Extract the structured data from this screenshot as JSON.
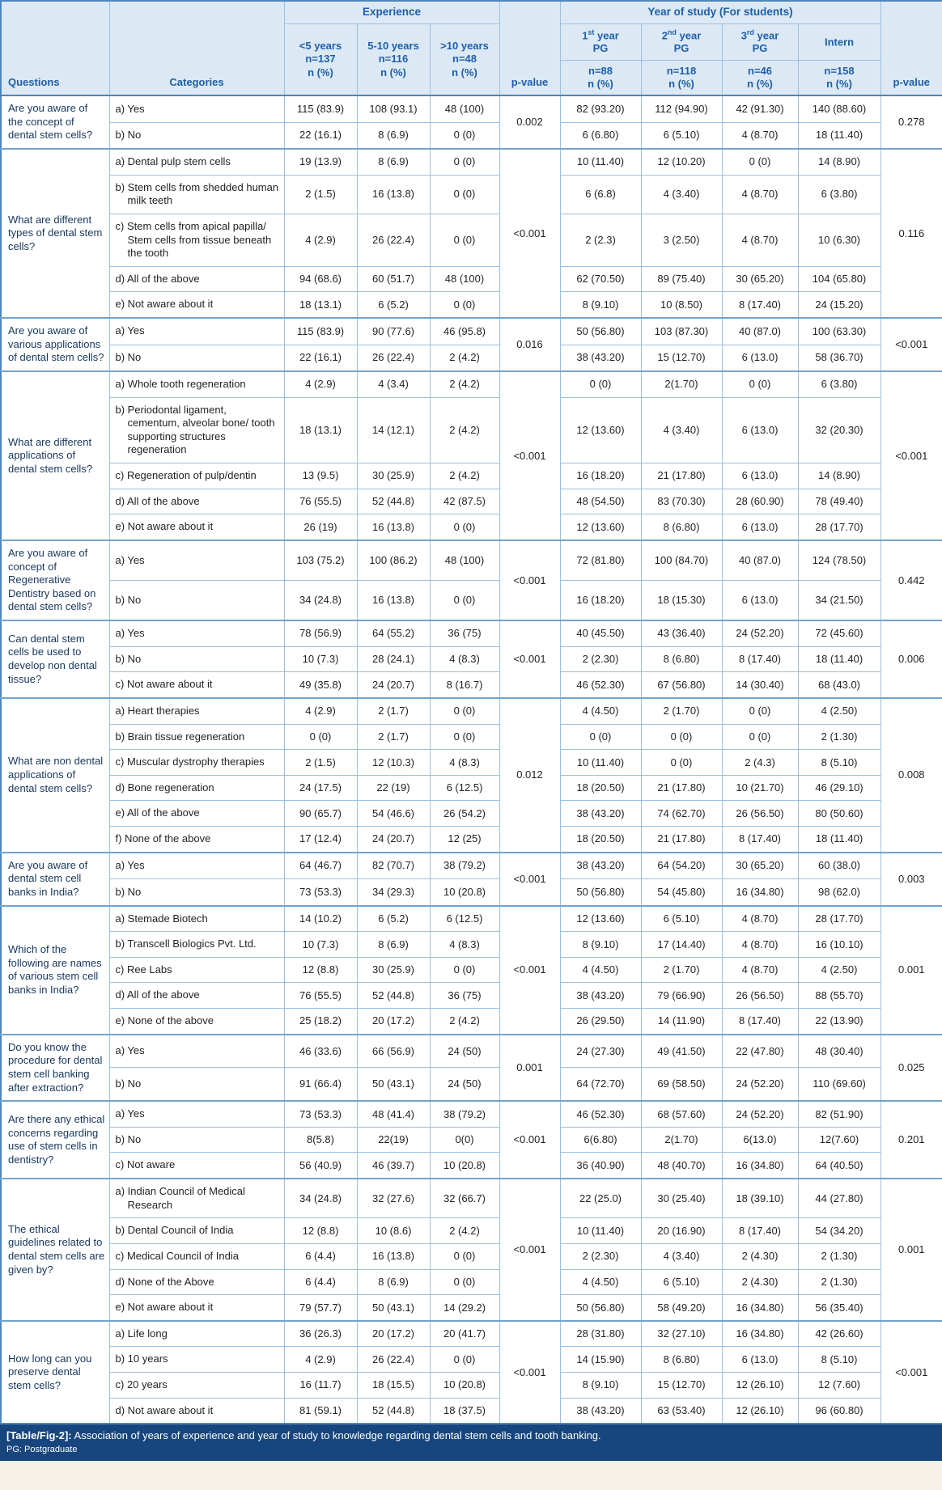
{
  "table": {
    "header": {
      "questions_label": "Questions",
      "categories_label": "Categories",
      "experience_label": "Experience",
      "year_label": "Year of study (For students)",
      "pvalue_label": "p-value",
      "experience_cols": [
        {
          "line1": "<5 years",
          "line2": "n=137",
          "line3": "n (%)"
        },
        {
          "line1": "5-10 years",
          "line2": "n=116",
          "line3": "n (%)"
        },
        {
          "line1": ">10 years",
          "line2": "n=48",
          "line3": "n (%)"
        }
      ],
      "year_cols": [
        {
          "pre": "1",
          "sup": "st",
          "post": " year",
          "line2": "PG",
          "n": "n=88",
          "npct": "n (%)"
        },
        {
          "pre": "2",
          "sup": "nd",
          "post": " year",
          "line2": "PG",
          "n": "n=118",
          "npct": "n (%)"
        },
        {
          "pre": "3",
          "sup": "rd",
          "post": " year",
          "line2": "PG",
          "n": "n=46",
          "npct": "n (%)"
        },
        {
          "pre": "Intern",
          "sup": "",
          "post": "",
          "line2": "",
          "n": "n=158",
          "npct": "n (%)"
        }
      ]
    },
    "questions": [
      {
        "question": "Are you aware of the concept of dental stem cells?",
        "exp_p": "0.002",
        "year_p": "0.278",
        "rows": [
          {
            "category": "a) Yes",
            "exp": [
              "115 (83.9)",
              "108 (93.1)",
              "48 (100)"
            ],
            "year": [
              "82 (93.20)",
              "112 (94.90)",
              "42 (91.30)",
              "140 (88.60)"
            ]
          },
          {
            "category": "b) No",
            "exp": [
              "22 (16.1)",
              "8 (6.9)",
              "0 (0)"
            ],
            "year": [
              "6 (6.80)",
              "6 (5.10)",
              "4 (8.70)",
              "18 (11.40)"
            ]
          }
        ]
      },
      {
        "question": "What are different types of dental stem cells?",
        "exp_p": "<0.001",
        "year_p": "0.116",
        "rows": [
          {
            "category": "a) Dental pulp stem cells",
            "exp": [
              "19 (13.9)",
              "8 (6.9)",
              "0 (0)"
            ],
            "year": [
              "10 (11.40)",
              "12 (10.20)",
              "0 (0)",
              "14 (8.90)"
            ]
          },
          {
            "category": "b) Stem cells from shedded human milk teeth",
            "exp": [
              "2 (1.5)",
              "16 (13.8)",
              "0 (0)"
            ],
            "year": [
              "6 (6.8)",
              "4 (3.40)",
              "4 (8.70)",
              "6 (3.80)"
            ]
          },
          {
            "category": "c) Stem cells from apical papilla/ Stem cells from tissue beneath the tooth",
            "exp": [
              "4 (2.9)",
              "26 (22.4)",
              "0 (0)"
            ],
            "year": [
              "2 (2.3)",
              "3 (2.50)",
              "4 (8.70)",
              "10 (6.30)"
            ]
          },
          {
            "category": "d) All of the above",
            "exp": [
              "94 (68.6)",
              "60 (51.7)",
              "48 (100)"
            ],
            "year": [
              "62 (70.50)",
              "89 (75.40)",
              "30 (65.20)",
              "104 (65.80)"
            ]
          },
          {
            "category": "e) Not aware about it",
            "exp": [
              "18 (13.1)",
              "6 (5.2)",
              "0 (0)"
            ],
            "year": [
              "8 (9.10)",
              "10 (8.50)",
              "8 (17.40)",
              "24 (15.20)"
            ]
          }
        ]
      },
      {
        "question": "Are you aware of various applications of dental stem cells?",
        "exp_p": "0.016",
        "year_p": "<0.001",
        "rows": [
          {
            "category": "a) Yes",
            "exp": [
              "115 (83.9)",
              "90 (77.6)",
              "46 (95.8)"
            ],
            "year": [
              "50 (56.80)",
              "103 (87.30)",
              "40 (87.0)",
              "100 (63.30)"
            ]
          },
          {
            "category": "b) No",
            "exp": [
              "22 (16.1)",
              "26 (22.4)",
              "2 (4.2)"
            ],
            "year": [
              "38 (43.20)",
              "15 (12.70)",
              "6 (13.0)",
              "58 (36.70)"
            ]
          }
        ]
      },
      {
        "question": "What are different applications of dental stem cells?",
        "exp_p": "<0.001",
        "year_p": "<0.001",
        "rows": [
          {
            "category": "a) Whole tooth regeneration",
            "exp": [
              "4 (2.9)",
              "4 (3.4)",
              "2 (4.2)"
            ],
            "year": [
              "0 (0)",
              "2(1.70)",
              "0 (0)",
              "6 (3.80)"
            ]
          },
          {
            "category": "b) Periodontal ligament, cementum, alveolar bone/ tooth supporting structures regeneration",
            "exp": [
              "18 (13.1)",
              "14 (12.1)",
              "2 (4.2)"
            ],
            "year": [
              "12 (13.60)",
              "4 (3.40)",
              "6 (13.0)",
              "32 (20.30)"
            ]
          },
          {
            "category": "c) Regeneration of pulp/dentin",
            "exp": [
              "13 (9.5)",
              "30 (25.9)",
              "2 (4.2)"
            ],
            "year": [
              "16 (18.20)",
              "21 (17.80)",
              "6 (13.0)",
              "14 (8.90)"
            ]
          },
          {
            "category": "d) All of the above",
            "exp": [
              "76 (55.5)",
              "52 (44.8)",
              "42 (87.5)"
            ],
            "year": [
              "48 (54.50)",
              "83 (70.30)",
              "28 (60.90)",
              "78 (49.40)"
            ]
          },
          {
            "category": "e) Not aware about it",
            "exp": [
              "26 (19)",
              "16 (13.8)",
              "0 (0)"
            ],
            "year": [
              "12 (13.60)",
              "8 (6.80)",
              "6 (13.0)",
              "28 (17.70)"
            ]
          }
        ]
      },
      {
        "question": "Are you aware of concept of Regenerative Dentistry based on dental stem cells?",
        "exp_p": "<0.001",
        "year_p": "0.442",
        "rows": [
          {
            "category": "a) Yes",
            "exp": [
              "103 (75.2)",
              "100 (86.2)",
              "48 (100)"
            ],
            "year": [
              "72 (81.80)",
              "100 (84.70)",
              "40 (87.0)",
              "124 (78.50)"
            ]
          },
          {
            "category": "b) No",
            "exp": [
              "34 (24.8)",
              "16 (13.8)",
              "0 (0)"
            ],
            "year": [
              "16 (18.20)",
              "18 (15.30)",
              "6 (13.0)",
              "34 (21.50)"
            ]
          }
        ]
      },
      {
        "question": "Can dental stem cells be used to develop non dental tissue?",
        "exp_p": "<0.001",
        "year_p": "0.006",
        "rows": [
          {
            "category": "a) Yes",
            "exp": [
              "78 (56.9)",
              "64 (55.2)",
              "36 (75)"
            ],
            "year": [
              "40 (45.50)",
              "43 (36.40)",
              "24 (52.20)",
              "72 (45.60)"
            ]
          },
          {
            "category": "b) No",
            "exp": [
              "10 (7.3)",
              "28 (24.1)",
              "4 (8.3)"
            ],
            "year": [
              "2 (2.30)",
              "8 (6.80)",
              "8 (17.40)",
              "18 (11.40)"
            ]
          },
          {
            "category": "c) Not aware about it",
            "exp": [
              "49 (35.8)",
              "24 (20.7)",
              "8 (16.7)"
            ],
            "year": [
              "46 (52.30)",
              "67 (56.80)",
              "14 (30.40)",
              "68 (43.0)"
            ]
          }
        ]
      },
      {
        "question": "What are non dental applications of dental stem cells?",
        "exp_p": "0.012",
        "year_p": "0.008",
        "rows": [
          {
            "category": "a) Heart therapies",
            "exp": [
              "4 (2.9)",
              "2 (1.7)",
              "0 (0)"
            ],
            "year": [
              "4 (4.50)",
              "2 (1.70)",
              "0 (0)",
              "4 (2.50)"
            ]
          },
          {
            "category": "b) Brain tissue regeneration",
            "exp": [
              "0 (0)",
              "2 (1.7)",
              "0 (0)"
            ],
            "year": [
              "0 (0)",
              "0 (0)",
              "0 (0)",
              "2 (1.30)"
            ]
          },
          {
            "category": "c) Muscular dystrophy therapies",
            "exp": [
              "2 (1.5)",
              "12 (10.3)",
              "4 (8.3)"
            ],
            "year": [
              "10 (11.40)",
              "0 (0)",
              "2 (4.3)",
              "8 (5.10)"
            ]
          },
          {
            "category": "d) Bone regeneration",
            "exp": [
              "24 (17.5)",
              "22 (19)",
              "6 (12.5)"
            ],
            "year": [
              "18 (20.50)",
              "21 (17.80)",
              "10 (21.70)",
              "46 (29.10)"
            ]
          },
          {
            "category": "e) All of the above",
            "exp": [
              "90 (65.7)",
              "54 (46.6)",
              "26 (54.2)"
            ],
            "year": [
              "38 (43.20)",
              "74 (62.70)",
              "26 (56.50)",
              "80 (50.60)"
            ]
          },
          {
            "category": "f) None of the above",
            "exp": [
              "17 (12.4)",
              "24 (20.7)",
              "12 (25)"
            ],
            "year": [
              "18 (20.50)",
              "21 (17.80)",
              "8 (17.40)",
              "18 (11.40)"
            ]
          }
        ]
      },
      {
        "question": "Are you aware of dental stem cell banks in India?",
        "exp_p": "<0.001",
        "year_p": "0.003",
        "rows": [
          {
            "category": "a) Yes",
            "exp": [
              "64 (46.7)",
              "82 (70.7)",
              "38 (79.2)"
            ],
            "year": [
              "38 (43.20)",
              "64 (54.20)",
              "30 (65.20)",
              "60 (38.0)"
            ]
          },
          {
            "category": "b) No",
            "exp": [
              "73 (53.3)",
              "34 (29.3)",
              "10 (20.8)"
            ],
            "year": [
              "50 (56.80)",
              "54 (45.80)",
              "16 (34.80)",
              "98 (62.0)"
            ]
          }
        ]
      },
      {
        "question": "Which of the following are names of various stem cell banks in India?",
        "exp_p": "<0.001",
        "year_p": "0.001",
        "rows": [
          {
            "category": "a) Stemade Biotech",
            "exp": [
              "14 (10.2)",
              "6 (5.2)",
              "6 (12.5)"
            ],
            "year": [
              "12 (13.60)",
              "6 (5.10)",
              "4 (8.70)",
              "28 (17.70)"
            ]
          },
          {
            "category": "b) Transcell Biologics Pvt. Ltd.",
            "exp": [
              "10 (7.3)",
              "8 (6.9)",
              "4 (8.3)"
            ],
            "year": [
              "8 (9.10)",
              "17 (14.40)",
              "4 (8.70)",
              "16 (10.10)"
            ]
          },
          {
            "category": "c) Ree Labs",
            "exp": [
              "12 (8.8)",
              "30 (25.9)",
              "0 (0)"
            ],
            "year": [
              "4 (4.50)",
              "2 (1.70)",
              "4 (8.70)",
              "4 (2.50)"
            ]
          },
          {
            "category": "d) All of the above",
            "exp": [
              "76 (55.5)",
              "52 (44.8)",
              "36 (75)"
            ],
            "year": [
              "38 (43.20)",
              "79 (66.90)",
              "26 (56.50)",
              "88 (55.70)"
            ]
          },
          {
            "category": "e) None of the above",
            "exp": [
              "25 (18.2)",
              "20 (17.2)",
              "2 (4.2)"
            ],
            "year": [
              "26 (29.50)",
              "14 (11.90)",
              "8 (17.40)",
              "22 (13.90)"
            ]
          }
        ]
      },
      {
        "question": "Do you know the procedure for dental stem cell banking after extraction?",
        "exp_p": "0.001",
        "year_p": "0.025",
        "rows": [
          {
            "category": "a) Yes",
            "exp": [
              "46 (33.6)",
              "66 (56.9)",
              "24 (50)"
            ],
            "year": [
              "24 (27.30)",
              "49 (41.50)",
              "22 (47.80)",
              "48 (30.40)"
            ]
          },
          {
            "category": "b) No",
            "exp": [
              "91 (66.4)",
              "50 (43.1)",
              "24 (50)"
            ],
            "year": [
              "64 (72.70)",
              "69 (58.50)",
              "24 (52.20)",
              "110 (69.60)"
            ]
          }
        ]
      },
      {
        "question": "Are there any ethical concerns regarding use of stem cells in dentistry?",
        "exp_p": "<0.001",
        "year_p": "0.201",
        "rows": [
          {
            "category": "a) Yes",
            "exp": [
              "73 (53.3)",
              "48 (41.4)",
              "38 (79.2)"
            ],
            "year": [
              "46 (52.30)",
              "68 (57.60)",
              "24 (52.20)",
              "82 (51.90)"
            ]
          },
          {
            "category": "b) No",
            "exp": [
              "8(5.8)",
              "22(19)",
              "0(0)"
            ],
            "year": [
              "6(6.80)",
              "2(1.70)",
              "6(13.0)",
              "12(7.60)"
            ]
          },
          {
            "category": "c) Not aware",
            "exp": [
              "56 (40.9)",
              "46 (39.7)",
              "10 (20.8)"
            ],
            "year": [
              "36 (40.90)",
              "48 (40.70)",
              "16 (34.80)",
              "64 (40.50)"
            ]
          }
        ]
      },
      {
        "question": "The ethical guidelines related to dental stem cells are given by?",
        "exp_p": "<0.001",
        "year_p": "0.001",
        "rows": [
          {
            "category": "a) Indian Council of Medical Research",
            "exp": [
              "34 (24.8)",
              "32 (27.6)",
              "32 (66.7)"
            ],
            "year": [
              "22 (25.0)",
              "30 (25.40)",
              "18 (39.10)",
              "44 (27.80)"
            ]
          },
          {
            "category": "b) Dental Council of India",
            "exp": [
              "12 (8.8)",
              "10 (8.6)",
              "2 (4.2)"
            ],
            "year": [
              "10 (11.40)",
              "20 (16.90)",
              "8 (17.40)",
              "54 (34.20)"
            ]
          },
          {
            "category": "c) Medical Council of India",
            "exp": [
              "6 (4.4)",
              "16 (13.8)",
              "0 (0)"
            ],
            "year": [
              "2 (2.30)",
              "4 (3.40)",
              "2 (4.30)",
              "2 (1.30)"
            ]
          },
          {
            "category": "d) None of the Above",
            "exp": [
              "6 (4.4)",
              "8 (6.9)",
              "0 (0)"
            ],
            "year": [
              "4 (4.50)",
              "6 (5.10)",
              "2 (4.30)",
              "2 (1.30)"
            ]
          },
          {
            "category": "e) Not aware about it",
            "exp": [
              "79 (57.7)",
              "50 (43.1)",
              "14 (29.2)"
            ],
            "year": [
              "50 (56.80)",
              "58 (49.20)",
              "16 (34.80)",
              "56 (35.40)"
            ]
          }
        ]
      },
      {
        "question": "How long can you preserve dental stem cells?",
        "exp_p": "<0.001",
        "year_p": "<0.001",
        "rows": [
          {
            "category": "a) Life long",
            "exp": [
              "36 (26.3)",
              "20 (17.2)",
              "20 (41.7)"
            ],
            "year": [
              "28 (31.80)",
              "32 (27.10)",
              "16 (34.80)",
              "42 (26.60)"
            ]
          },
          {
            "category": "b) 10 years",
            "exp": [
              "4 (2.9)",
              "26 (22.4)",
              "0 (0)"
            ],
            "year": [
              "14 (15.90)",
              "8 (6.80)",
              "6 (13.0)",
              "8 (5.10)"
            ]
          },
          {
            "category": "c) 20 years",
            "exp": [
              "16 (11.7)",
              "18 (15.5)",
              "10 (20.8)"
            ],
            "year": [
              "8 (9.10)",
              "15 (12.70)",
              "12 (26.10)",
              "12 (7.60)"
            ]
          },
          {
            "category": "d) Not aware about it",
            "exp": [
              "81 (59.1)",
              "52 (44.8)",
              "18 (37.5)"
            ],
            "year": [
              "38 (43.20)",
              "63 (53.40)",
              "12 (26.10)",
              "96 (60.80)"
            ]
          }
        ]
      }
    ]
  },
  "footer": {
    "tag": "[Table/Fig-2]:",
    "caption": " Association of years of experience and year of study to knowledge regarding dental stem cells and tooth banking.",
    "note": "PG: Postgraduate"
  }
}
